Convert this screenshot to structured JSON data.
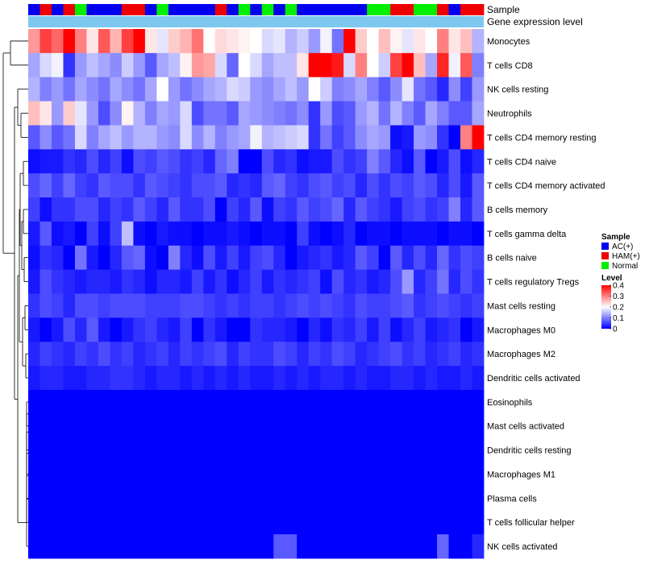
{
  "chart_data": {
    "type": "heatmap",
    "title": "",
    "annotation_labels": [
      "Sample",
      "Gene expression level"
    ],
    "row_labels": [
      "Monocytes",
      "T cells CD8",
      "NK cells resting",
      "Neutrophils",
      "T cells CD4 memory resting",
      "T cells CD4 naive",
      "T cells CD4 memory activated",
      "B cells memory",
      "T cells gamma delta",
      "B cells naive",
      "T cells regulatory  Tregs",
      "Mast cells resting",
      "Macrophages M0",
      "Macrophages M2",
      "Dendritic cells activated",
      "Eosinophils",
      "Mast cells activated",
      "Dendritic cells resting",
      "Macrophages M1",
      "Plasma cells",
      "T cells follicular helper",
      "NK cells activated"
    ],
    "sample_groups": [
      "AC",
      "HAM",
      "AC",
      "HAM",
      "Normal",
      "AC",
      "AC",
      "AC",
      "HAM",
      "HAM",
      "AC",
      "Normal",
      "AC",
      "AC",
      "AC",
      "AC",
      "HAM",
      "AC",
      "Normal",
      "AC",
      "Normal",
      "AC",
      "Normal",
      "AC",
      "AC",
      "AC",
      "AC",
      "AC",
      "AC",
      "Normal",
      "Normal",
      "HAM",
      "HAM",
      "Normal",
      "Normal",
      "HAM",
      "AC",
      "HAM",
      "HAM"
    ],
    "values": [
      [
        0.28,
        0.35,
        0.32,
        0.41,
        0.3,
        0.22,
        0.33,
        0.26,
        0.35,
        0.4,
        0.22,
        0.18,
        0.24,
        0.26,
        0.31,
        0.2,
        0.23,
        0.22,
        0.21,
        0.2,
        0.17,
        0.18,
        0.14,
        0.16,
        0.12,
        0.19,
        0.09,
        0.4,
        0.24,
        0.2,
        0.25,
        0.21,
        0.18,
        0.22,
        0.2,
        0.3,
        0.22,
        0.25,
        0.14
      ],
      [
        0.13,
        0.17,
        0.19,
        0.04,
        0.12,
        0.15,
        0.13,
        0.11,
        0.16,
        0.12,
        0.07,
        0.13,
        0.15,
        0.21,
        0.28,
        0.27,
        0.17,
        0.08,
        0.2,
        0.17,
        0.13,
        0.15,
        0.15,
        0.22,
        0.41,
        0.42,
        0.38,
        0.17,
        0.3,
        0.2,
        0.16,
        0.35,
        0.4,
        0.25,
        0.13,
        0.37,
        0.19,
        0.33,
        0.1
      ],
      [
        0.14,
        0.1,
        0.12,
        0.09,
        0.13,
        0.11,
        0.09,
        0.13,
        0.11,
        0.09,
        0.13,
        0.2,
        0.12,
        0.09,
        0.11,
        0.13,
        0.14,
        0.17,
        0.16,
        0.12,
        0.11,
        0.13,
        0.15,
        0.12,
        0.2,
        0.16,
        0.1,
        0.11,
        0.13,
        0.1,
        0.07,
        0.11,
        0.18,
        0.09,
        0.07,
        0.03,
        0.11,
        0.05,
        0.12
      ],
      [
        0.25,
        0.22,
        0.12,
        0.24,
        0.18,
        0.12,
        0.06,
        0.11,
        0.21,
        0.14,
        0.1,
        0.13,
        0.12,
        0.17,
        0.06,
        0.09,
        0.09,
        0.07,
        0.13,
        0.12,
        0.11,
        0.1,
        0.09,
        0.11,
        0.04,
        0.12,
        0.06,
        0.07,
        0.12,
        0.14,
        0.09,
        0.14,
        0.1,
        0.07,
        0.13,
        0.1,
        0.07,
        0.07,
        0.13
      ],
      [
        0.07,
        0.11,
        0.07,
        0.09,
        0.17,
        0.1,
        0.13,
        0.15,
        0.12,
        0.14,
        0.14,
        0.12,
        0.11,
        0.17,
        0.11,
        0.14,
        0.1,
        0.12,
        0.13,
        0.19,
        0.14,
        0.15,
        0.16,
        0.17,
        0.04,
        0.09,
        0.05,
        0.07,
        0.11,
        0.13,
        0.12,
        0.01,
        0.02,
        0.12,
        0.11,
        0.04,
        0.0,
        0.3,
        0.44
      ],
      [
        0.01,
        0.02,
        0.02,
        0.04,
        0.03,
        0.06,
        0.03,
        0.05,
        0.01,
        0.06,
        0.05,
        0.07,
        0.06,
        0.04,
        0.05,
        0.03,
        0.08,
        0.1,
        0.0,
        0.0,
        0.06,
        0.03,
        0.04,
        0.01,
        0.02,
        0.02,
        0.06,
        0.04,
        0.05,
        0.1,
        0.07,
        0.03,
        0.01,
        0.07,
        0.0,
        0.02,
        0.06,
        0.01,
        0.03
      ],
      [
        0.06,
        0.08,
        0.05,
        0.08,
        0.05,
        0.04,
        0.07,
        0.06,
        0.06,
        0.04,
        0.07,
        0.06,
        0.05,
        0.04,
        0.06,
        0.06,
        0.07,
        0.03,
        0.04,
        0.03,
        0.07,
        0.08,
        0.05,
        0.04,
        0.06,
        0.07,
        0.05,
        0.06,
        0.03,
        0.06,
        0.04,
        0.06,
        0.05,
        0.07,
        0.06,
        0.03,
        0.06,
        0.02,
        0.07
      ],
      [
        0.05,
        0.01,
        0.04,
        0.04,
        0.06,
        0.06,
        0.03,
        0.05,
        0.04,
        0.07,
        0.05,
        0.03,
        0.07,
        0.04,
        0.04,
        0.06,
        0.0,
        0.05,
        0.03,
        0.07,
        0.01,
        0.05,
        0.04,
        0.07,
        0.05,
        0.06,
        0.08,
        0.03,
        0.07,
        0.05,
        0.04,
        0.02,
        0.05,
        0.06,
        0.04,
        0.05,
        0.1,
        0.03,
        0.07
      ],
      [
        0.02,
        0.07,
        0.01,
        0.02,
        0.0,
        0.05,
        0.01,
        0.05,
        0.15,
        0.01,
        0.0,
        0.02,
        0.01,
        0.01,
        0.0,
        0.01,
        0.01,
        0.02,
        0.01,
        0.0,
        0.01,
        0.01,
        0.0,
        0.05,
        0.01,
        0.0,
        0.01,
        0.03,
        0.0,
        0.01,
        0.01,
        0.0,
        0.01,
        0.01,
        0.01,
        0.0,
        0.01,
        0.01,
        0.0
      ],
      [
        0.01,
        0.04,
        0.03,
        0.0,
        0.09,
        0.02,
        0.0,
        0.03,
        0.07,
        0.08,
        0.01,
        0.0,
        0.1,
        0.03,
        0.01,
        0.06,
        0.02,
        0.05,
        0.02,
        0.05,
        0.06,
        0.03,
        0.0,
        0.02,
        0.03,
        0.04,
        0.02,
        0.03,
        0.07,
        0.05,
        0.0,
        0.07,
        0.03,
        0.06,
        0.03,
        0.08,
        0.04,
        0.06,
        0.05
      ],
      [
        0.02,
        0.06,
        0.04,
        0.03,
        0.02,
        0.03,
        0.03,
        0.02,
        0.04,
        0.03,
        0.01,
        0.03,
        0.03,
        0.02,
        0.05,
        0.02,
        0.04,
        0.01,
        0.03,
        0.05,
        0.02,
        0.04,
        0.03,
        0.04,
        0.05,
        0.01,
        0.06,
        0.03,
        0.04,
        0.02,
        0.03,
        0.06,
        0.12,
        0.03,
        0.05,
        0.09,
        0.03,
        0.06,
        0.04
      ],
      [
        0.04,
        0.06,
        0.05,
        0.03,
        0.06,
        0.06,
        0.05,
        0.06,
        0.06,
        0.06,
        0.05,
        0.05,
        0.05,
        0.06,
        0.06,
        0.05,
        0.04,
        0.05,
        0.04,
        0.05,
        0.05,
        0.04,
        0.05,
        0.06,
        0.05,
        0.06,
        0.05,
        0.04,
        0.06,
        0.05,
        0.05,
        0.06,
        0.07,
        0.04,
        0.05,
        0.06,
        0.05,
        0.04,
        0.05
      ],
      [
        0.02,
        0.0,
        0.02,
        0.06,
        0.03,
        0.07,
        0.02,
        0.0,
        0.02,
        0.04,
        0.05,
        0.03,
        0.02,
        0.05,
        0.0,
        0.04,
        0.02,
        0.0,
        0.0,
        0.04,
        0.03,
        0.03,
        0.02,
        0.0,
        0.03,
        0.01,
        0.04,
        0.03,
        0.05,
        0.02,
        0.05,
        0.01,
        0.03,
        0.05,
        0.02,
        0.03,
        0.04,
        0.0,
        0.02
      ],
      [
        0.03,
        0.05,
        0.04,
        0.03,
        0.05,
        0.04,
        0.06,
        0.04,
        0.05,
        0.03,
        0.04,
        0.05,
        0.03,
        0.05,
        0.04,
        0.05,
        0.06,
        0.03,
        0.05,
        0.04,
        0.04,
        0.06,
        0.05,
        0.03,
        0.05,
        0.04,
        0.06,
        0.05,
        0.03,
        0.04,
        0.05,
        0.06,
        0.04,
        0.05,
        0.03,
        0.04,
        0.05,
        0.03,
        0.04
      ],
      [
        0.02,
        0.03,
        0.03,
        0.02,
        0.02,
        0.03,
        0.03,
        0.04,
        0.04,
        0.03,
        0.02,
        0.03,
        0.03,
        0.02,
        0.03,
        0.02,
        0.03,
        0.02,
        0.03,
        0.02,
        0.02,
        0.03,
        0.02,
        0.03,
        0.02,
        0.03,
        0.03,
        0.02,
        0.03,
        0.02,
        0.02,
        0.03,
        0.03,
        0.02,
        0.03,
        0.02,
        0.02,
        0.03,
        0.02
      ],
      [
        0.0,
        0.0,
        0.0,
        0.0,
        0.0,
        0.0,
        0.0,
        0.0,
        0.0,
        0.0,
        0.0,
        0.0,
        0.0,
        0.0,
        0.0,
        0.0,
        0.0,
        0.0,
        0.0,
        0.0,
        0.0,
        0.0,
        0.0,
        0.0,
        0.0,
        0.0,
        0.0,
        0.0,
        0.0,
        0.0,
        0.0,
        0.0,
        0.0,
        0.0,
        0.0,
        0.0,
        0.0,
        0.0,
        0.0
      ],
      [
        0.0,
        0.0,
        0.0,
        0.0,
        0.0,
        0.0,
        0.0,
        0.0,
        0.0,
        0.0,
        0.0,
        0.0,
        0.0,
        0.0,
        0.0,
        0.0,
        0.0,
        0.0,
        0.0,
        0.0,
        0.0,
        0.0,
        0.0,
        0.0,
        0.0,
        0.0,
        0.0,
        0.0,
        0.0,
        0.0,
        0.0,
        0.0,
        0.0,
        0.0,
        0.0,
        0.0,
        0.0,
        0.0,
        0.0
      ],
      [
        0.0,
        0.0,
        0.0,
        0.0,
        0.0,
        0.0,
        0.0,
        0.0,
        0.0,
        0.0,
        0.0,
        0.0,
        0.0,
        0.0,
        0.0,
        0.0,
        0.0,
        0.0,
        0.0,
        0.0,
        0.0,
        0.0,
        0.0,
        0.0,
        0.0,
        0.0,
        0.0,
        0.0,
        0.0,
        0.0,
        0.0,
        0.0,
        0.0,
        0.0,
        0.0,
        0.0,
        0.0,
        0.0,
        0.0
      ],
      [
        0.0,
        0.0,
        0.0,
        0.0,
        0.0,
        0.0,
        0.0,
        0.0,
        0.0,
        0.0,
        0.0,
        0.0,
        0.0,
        0.0,
        0.0,
        0.0,
        0.0,
        0.0,
        0.0,
        0.0,
        0.0,
        0.0,
        0.0,
        0.0,
        0.0,
        0.0,
        0.0,
        0.0,
        0.0,
        0.0,
        0.0,
        0.0,
        0.0,
        0.0,
        0.0,
        0.0,
        0.0,
        0.0,
        0.0
      ],
      [
        0.0,
        0.0,
        0.0,
        0.0,
        0.0,
        0.0,
        0.0,
        0.0,
        0.0,
        0.0,
        0.0,
        0.0,
        0.0,
        0.0,
        0.0,
        0.0,
        0.0,
        0.0,
        0.0,
        0.0,
        0.0,
        0.0,
        0.0,
        0.0,
        0.0,
        0.0,
        0.0,
        0.0,
        0.0,
        0.0,
        0.0,
        0.0,
        0.0,
        0.0,
        0.0,
        0.0,
        0.0,
        0.0,
        0.0
      ],
      [
        0.0,
        0.0,
        0.0,
        0.0,
        0.0,
        0.0,
        0.0,
        0.0,
        0.0,
        0.0,
        0.0,
        0.0,
        0.0,
        0.0,
        0.0,
        0.0,
        0.0,
        0.0,
        0.0,
        0.0,
        0.0,
        0.0,
        0.0,
        0.0,
        0.0,
        0.0,
        0.0,
        0.0,
        0.0,
        0.0,
        0.0,
        0.0,
        0.0,
        0.0,
        0.0,
        0.0,
        0.0,
        0.0,
        0.0
      ],
      [
        0.0,
        0.0,
        0.0,
        0.0,
        0.0,
        0.0,
        0.0,
        0.0,
        0.0,
        0.0,
        0.0,
        0.0,
        0.0,
        0.0,
        0.0,
        0.0,
        0.0,
        0.0,
        0.0,
        0.0,
        0.0,
        0.07,
        0.07,
        0.0,
        0.0,
        0.0,
        0.0,
        0.0,
        0.0,
        0.0,
        0.0,
        0.0,
        0.0,
        0.0,
        0.0,
        0.08,
        0.0,
        0.0,
        0.03
      ]
    ],
    "color_scale": {
      "min": 0,
      "mid": 0.2,
      "max": 0.4,
      "low": "#0000ff",
      "middle": "#ffffff",
      "high": "#ff0000"
    },
    "expression_bar_color": "#7ec8f0",
    "legends": {
      "sample": {
        "title": "Sample",
        "items": [
          {
            "key": "AC",
            "label": "AC(+)",
            "color": "#0000ee"
          },
          {
            "key": "HAM",
            "label": "HAM(+)",
            "color": "#ee0000"
          },
          {
            "key": "Normal",
            "label": "Normal",
            "color": "#00ee00"
          }
        ]
      },
      "level": {
        "title": "Level",
        "ticks": [
          0.4,
          0.3,
          0.2,
          0.1,
          0
        ],
        "tick_labels": [
          "0.4",
          "0.3",
          "0.2",
          "0.1",
          "0"
        ]
      }
    }
  }
}
